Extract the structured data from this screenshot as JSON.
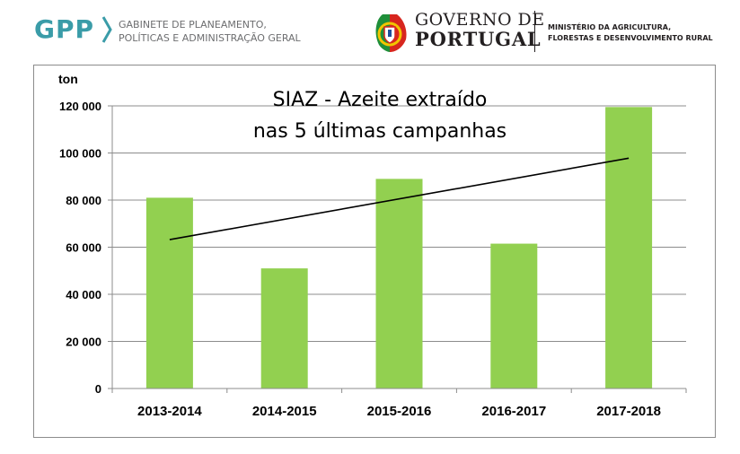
{
  "header": {
    "gpp": {
      "logo_text": "GPP",
      "line1": "GABINETE DE PLANEAMENTO,",
      "line2": "POLÍTICAS E ADMINISTRAÇÃO GERAL",
      "logo_color": "#3a9ca8"
    },
    "governo": {
      "line1": "GOVERNO DE",
      "line2": "PORTUGAL"
    },
    "ministry": {
      "line1": "MINISTÉRIO DA AGRICULTURA,",
      "line2": "FLORESTAS E DESENVOLVIMENTO RURAL"
    }
  },
  "chart_data": {
    "type": "bar",
    "title_line1": "SIAZ - Azeite extraído",
    "title_line2": "nas 5 últimas campanhas",
    "ylabel": "ton",
    "categories": [
      "2013-2014",
      "2014-2015",
      "2015-2016",
      "2016-2017",
      "2017-2018"
    ],
    "values": [
      81000,
      51000,
      89000,
      61500,
      119500
    ],
    "trendline": {
      "start": 63200,
      "end": 97800
    },
    "ylim": [
      0,
      120000
    ],
    "yticks": [
      0,
      20000,
      40000,
      60000,
      80000,
      100000,
      120000
    ],
    "ytick_labels": [
      "0",
      "20 000",
      "40 000",
      "60 000",
      "80 000",
      "100 000",
      "120 000"
    ],
    "grid": true,
    "bar_color": "#92d050",
    "legend": "none"
  }
}
